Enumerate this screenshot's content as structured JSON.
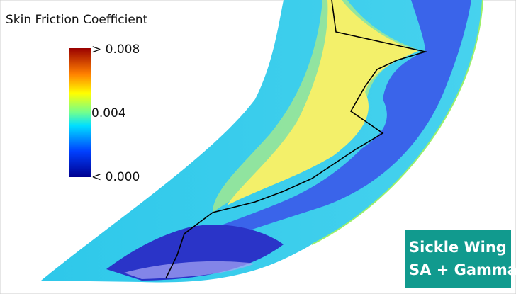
{
  "title": "Skin Friction Coefficient",
  "colorbar": {
    "labels": [
      "> 0.008",
      "0.004",
      "< 0.000"
    ]
  },
  "badge": {
    "lines": [
      "Sickle Wing",
      "SA + Gamma"
    ]
  }
}
